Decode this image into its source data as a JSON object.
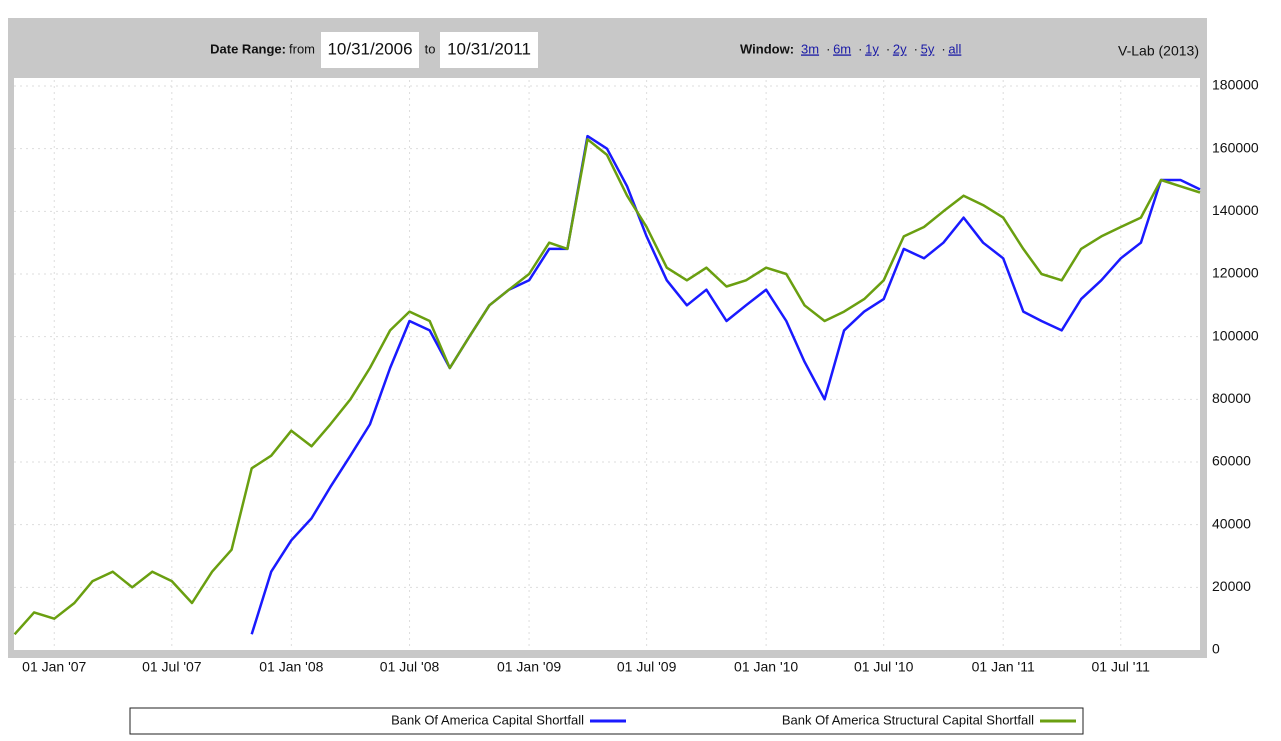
{
  "toolbar": {
    "date_range_label": "Date Range:",
    "from_label": "from",
    "from_date": "10/31/2006",
    "to_label": "to",
    "to_date": "10/31/2011",
    "window_label": "Window:",
    "windows": [
      "3m",
      "6m",
      "1y",
      "2y",
      "5y",
      "all"
    ],
    "separator": "·",
    "credit": "V-Lab (2013)"
  },
  "chart_data": {
    "type": "line",
    "x": [
      "2006-11-01",
      "2006-12-01",
      "2007-01-01",
      "2007-02-01",
      "2007-03-01",
      "2007-04-01",
      "2007-05-01",
      "2007-06-01",
      "2007-07-01",
      "2007-08-01",
      "2007-09-01",
      "2007-10-01",
      "2007-11-01",
      "2007-12-01",
      "2008-01-01",
      "2008-02-01",
      "2008-03-01",
      "2008-04-01",
      "2008-05-01",
      "2008-06-01",
      "2008-07-01",
      "2008-08-01",
      "2008-09-01",
      "2008-10-01",
      "2008-11-01",
      "2008-12-01",
      "2009-01-01",
      "2009-02-01",
      "2009-03-01",
      "2009-04-01",
      "2009-05-01",
      "2009-06-01",
      "2009-07-01",
      "2009-08-01",
      "2009-09-01",
      "2009-10-01",
      "2009-11-01",
      "2009-12-01",
      "2010-01-01",
      "2010-02-01",
      "2010-03-01",
      "2010-04-01",
      "2010-05-01",
      "2010-06-01",
      "2010-07-01",
      "2010-08-01",
      "2010-09-01",
      "2010-10-01",
      "2010-11-01",
      "2010-12-01",
      "2011-01-01",
      "2011-02-01",
      "2011-03-01",
      "2011-04-01",
      "2011-05-01",
      "2011-06-01",
      "2011-07-01",
      "2011-08-01",
      "2011-09-01",
      "2011-10-01",
      "2011-10-31"
    ],
    "series": [
      {
        "name": "Bank Of America Capital Shortfall",
        "color": "#1a1aff",
        "values": [
          null,
          null,
          null,
          null,
          null,
          null,
          null,
          null,
          null,
          null,
          null,
          null,
          5000,
          25000,
          35000,
          42000,
          52000,
          62000,
          72000,
          90000,
          105000,
          102000,
          90000,
          100000,
          110000,
          115000,
          118000,
          128000,
          128000,
          164000,
          160000,
          148000,
          132000,
          118000,
          110000,
          115000,
          105000,
          110000,
          115000,
          105000,
          92000,
          80000,
          102000,
          108000,
          112000,
          128000,
          125000,
          130000,
          138000,
          130000,
          125000,
          108000,
          105000,
          102000,
          112000,
          118000,
          125000,
          130000,
          150000,
          150000,
          147000
        ]
      },
      {
        "name": "Bank Of America Structural Capital Shortfall",
        "color": "#6a9f10",
        "values": [
          5000,
          12000,
          10000,
          15000,
          22000,
          25000,
          20000,
          25000,
          22000,
          15000,
          25000,
          32000,
          58000,
          62000,
          70000,
          65000,
          72000,
          80000,
          90000,
          102000,
          108000,
          105000,
          90000,
          100000,
          110000,
          115000,
          120000,
          130000,
          128000,
          163000,
          158000,
          145000,
          135000,
          122000,
          118000,
          122000,
          116000,
          118000,
          122000,
          120000,
          110000,
          105000,
          108000,
          112000,
          118000,
          132000,
          135000,
          140000,
          145000,
          142000,
          138000,
          128000,
          120000,
          118000,
          128000,
          132000,
          135000,
          138000,
          150000,
          148000,
          146000
        ]
      }
    ],
    "xlim": [
      "2006-10-31",
      "2011-10-31"
    ],
    "xticks": [
      {
        "value": "2007-01-01",
        "label": "01 Jan '07"
      },
      {
        "value": "2007-07-01",
        "label": "01 Jul '07"
      },
      {
        "value": "2008-01-01",
        "label": "01 Jan '08"
      },
      {
        "value": "2008-07-01",
        "label": "01 Jul '08"
      },
      {
        "value": "2009-01-01",
        "label": "01 Jan '09"
      },
      {
        "value": "2009-07-01",
        "label": "01 Jul '09"
      },
      {
        "value": "2010-01-01",
        "label": "01 Jan '10"
      },
      {
        "value": "2010-07-01",
        "label": "01 Jul '10"
      },
      {
        "value": "2011-01-01",
        "label": "01 Jan '11"
      },
      {
        "value": "2011-07-01",
        "label": "01 Jul '11"
      }
    ],
    "ylim": [
      0,
      180000
    ],
    "yticks": [
      0,
      20000,
      40000,
      60000,
      80000,
      100000,
      120000,
      140000,
      160000,
      180000
    ],
    "grid": true
  }
}
